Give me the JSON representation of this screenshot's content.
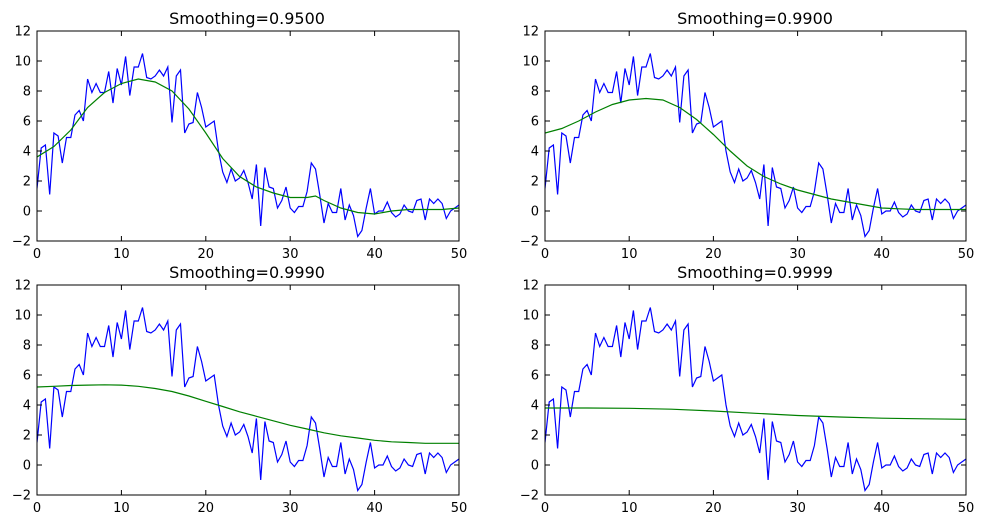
{
  "chart_data": [
    {
      "type": "line",
      "title": "Smoothing=0.9500",
      "xlim": [
        0,
        50
      ],
      "ylim": [
        -2,
        12
      ],
      "xticks": [
        0,
        10,
        20,
        30,
        40,
        50
      ],
      "yticks": [
        -2,
        0,
        2,
        4,
        6,
        8,
        10,
        12
      ],
      "series": [
        {
          "color": "#0000ff",
          "kind": "raw"
        },
        {
          "color": "#008000",
          "kind": "smoothed",
          "x": [
            0,
            2,
            4,
            6,
            8,
            10,
            12,
            14,
            16,
            18,
            20,
            22,
            24,
            26,
            28,
            30,
            32,
            33,
            34,
            36,
            38,
            40,
            42,
            44,
            46,
            48,
            50
          ],
          "y": [
            3.6,
            4.3,
            5.4,
            6.9,
            7.9,
            8.5,
            8.8,
            8.6,
            8.0,
            6.8,
            5.2,
            3.5,
            2.3,
            1.6,
            1.2,
            0.9,
            0.9,
            1.0,
            0.7,
            0.2,
            -0.1,
            -0.2,
            0.0,
            0.1,
            0.1,
            0.1,
            0.2
          ]
        }
      ]
    },
    {
      "type": "line",
      "title": "Smoothing=0.9900",
      "xlim": [
        0,
        50
      ],
      "ylim": [
        -2,
        12
      ],
      "xticks": [
        0,
        10,
        20,
        30,
        40,
        50
      ],
      "yticks": [
        -2,
        0,
        2,
        4,
        6,
        8,
        10,
        12
      ],
      "series": [
        {
          "color": "#0000ff",
          "kind": "raw"
        },
        {
          "color": "#008000",
          "kind": "smoothed",
          "x": [
            0,
            2,
            4,
            6,
            8,
            10,
            12,
            14,
            16,
            18,
            20,
            22,
            24,
            26,
            28,
            30,
            32,
            34,
            36,
            38,
            40,
            42,
            44,
            46,
            48,
            50
          ],
          "y": [
            5.2,
            5.5,
            6.0,
            6.6,
            7.1,
            7.4,
            7.5,
            7.4,
            6.9,
            6.1,
            5.1,
            4.0,
            3.0,
            2.3,
            1.8,
            1.4,
            1.1,
            0.8,
            0.6,
            0.4,
            0.2,
            0.15,
            0.1,
            0.1,
            0.1,
            0.1
          ]
        }
      ]
    },
    {
      "type": "line",
      "title": "Smoothing=0.9990",
      "xlim": [
        0,
        50
      ],
      "ylim": [
        -2,
        12
      ],
      "xticks": [
        0,
        10,
        20,
        30,
        40,
        50
      ],
      "yticks": [
        -2,
        0,
        2,
        4,
        6,
        8,
        10,
        12
      ],
      "series": [
        {
          "color": "#0000ff",
          "kind": "raw"
        },
        {
          "color": "#008000",
          "kind": "smoothed",
          "x": [
            0,
            2,
            4,
            6,
            8,
            10,
            12,
            14,
            16,
            18,
            20,
            22,
            24,
            26,
            28,
            30,
            32,
            34,
            36,
            38,
            40,
            42,
            44,
            46,
            48,
            50
          ],
          "y": [
            5.2,
            5.25,
            5.3,
            5.33,
            5.35,
            5.33,
            5.25,
            5.1,
            4.9,
            4.6,
            4.25,
            3.9,
            3.55,
            3.25,
            2.95,
            2.65,
            2.4,
            2.15,
            1.95,
            1.8,
            1.65,
            1.55,
            1.5,
            1.45,
            1.45,
            1.45
          ]
        }
      ]
    },
    {
      "type": "line",
      "title": "Smoothing=0.9999",
      "xlim": [
        0,
        50
      ],
      "ylim": [
        -2,
        12
      ],
      "xticks": [
        0,
        10,
        20,
        30,
        40,
        50
      ],
      "yticks": [
        -2,
        0,
        2,
        4,
        6,
        8,
        10,
        12
      ],
      "series": [
        {
          "color": "#0000ff",
          "kind": "raw"
        },
        {
          "color": "#008000",
          "kind": "smoothed",
          "x": [
            0,
            5,
            10,
            15,
            20,
            25,
            30,
            35,
            40,
            45,
            50
          ],
          "y": [
            3.8,
            3.8,
            3.78,
            3.72,
            3.6,
            3.45,
            3.3,
            3.2,
            3.12,
            3.08,
            3.05
          ]
        }
      ]
    }
  ],
  "raw_signal": {
    "x_start": 0,
    "x_step": 0.5,
    "y": [
      1.5,
      4.2,
      4.4,
      1.1,
      5.2,
      5.0,
      3.2,
      4.9,
      4.9,
      6.4,
      6.7,
      6.0,
      8.8,
      7.9,
      8.5,
      7.9,
      7.9,
      9.3,
      7.2,
      9.5,
      8.4,
      10.3,
      7.7,
      9.6,
      9.6,
      10.5,
      8.9,
      8.8,
      9.0,
      9.4,
      9.0,
      9.6,
      5.9,
      9.0,
      9.4,
      5.2,
      5.8,
      5.9,
      7.9,
      6.9,
      5.6,
      5.8,
      6.0,
      4.0,
      2.6,
      1.9,
      2.8,
      2.0,
      2.2,
      2.7,
      1.9,
      0.8,
      3.1,
      -1.0,
      2.9,
      1.6,
      1.5,
      0.2,
      0.7,
      1.6,
      0.2,
      -0.1,
      0.3,
      0.3,
      1.3,
      3.2,
      2.8,
      1.1,
      -0.8,
      0.5,
      -0.1,
      -0.1,
      1.5,
      -0.6,
      0.4,
      -0.3,
      -1.7,
      -1.3,
      0.2,
      1.5,
      -0.2,
      0.0,
      0.0,
      0.6,
      -0.1,
      -0.4,
      -0.2,
      0.4,
      0.0,
      -0.1,
      0.7,
      0.8,
      -0.6,
      0.8,
      0.5,
      0.8,
      0.5,
      -0.5,
      0.0,
      0.2,
      0.4
    ]
  }
}
